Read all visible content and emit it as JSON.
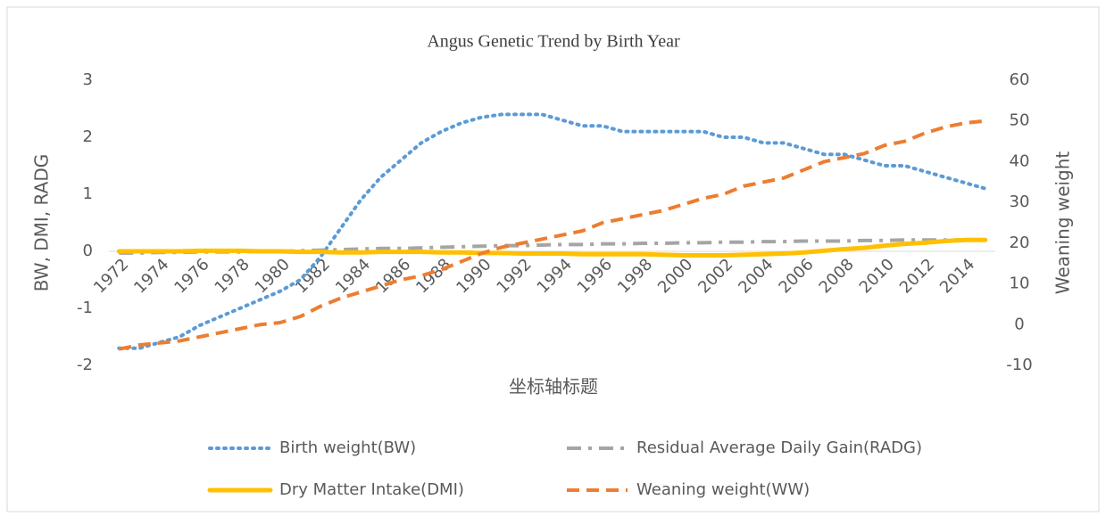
{
  "chart_data": {
    "type": "line",
    "title": "Angus Genetic Trend by Birth Year",
    "x_label": "坐标轴标题",
    "y_label": "BW, DMI, RADG",
    "y2_label": "Weaning weight",
    "categories": [
      "1972",
      null,
      "1974",
      null,
      "1976",
      null,
      "1978",
      null,
      "1980",
      null,
      "1982",
      null,
      "1984",
      null,
      "1986",
      null,
      "1988",
      null,
      "1990",
      null,
      "1992",
      null,
      "1994",
      null,
      "1996",
      null,
      "1998",
      null,
      "2000",
      null,
      "2002",
      null,
      "2004",
      null,
      "2006",
      null,
      "2008",
      null,
      "2010",
      null,
      "2012",
      null,
      "2014",
      null
    ],
    "ylim": [
      -2,
      3
    ],
    "yticks": [
      -2,
      -1,
      0,
      1,
      2,
      3
    ],
    "y2lim": [
      -10,
      60
    ],
    "y2ticks": [
      -10,
      0,
      10,
      20,
      30,
      40,
      50,
      60
    ],
    "legend": "bottom",
    "series": [
      {
        "name": "Birth weight(BW)",
        "color": "#5b9bd5",
        "dash": "dot",
        "values": [
          -1.7,
          -1.7,
          -1.6,
          -1.5,
          -1.3,
          -1.15,
          -1.0,
          -0.85,
          -0.7,
          -0.5,
          -0.1,
          0.4,
          0.9,
          1.3,
          1.6,
          1.9,
          2.1,
          2.25,
          2.35,
          2.4,
          2.4,
          2.4,
          2.3,
          2.2,
          2.2,
          2.1,
          2.1,
          2.1,
          2.1,
          2.1,
          2.0,
          2.0,
          1.9,
          1.9,
          1.8,
          1.7,
          1.7,
          1.6,
          1.5,
          1.5,
          1.4,
          1.3,
          1.2,
          1.1
        ]
      },
      {
        "name": "Residual Average Daily Gain(RADG)",
        "color": "#a5a5a5",
        "dash": "dashdot",
        "values": [
          -0.03,
          -0.03,
          -0.02,
          -0.02,
          -0.01,
          -0.01,
          -0.01,
          0,
          0,
          0.01,
          0.02,
          0.03,
          0.04,
          0.05,
          0.05,
          0.06,
          0.07,
          0.08,
          0.09,
          0.1,
          0.1,
          0.11,
          0.12,
          0.12,
          0.13,
          0.13,
          0.14,
          0.14,
          0.15,
          0.15,
          0.16,
          0.16,
          0.17,
          0.17,
          0.18,
          0.18,
          0.18,
          0.19,
          0.19,
          0.2,
          0.2,
          0.2,
          0.2,
          0.2
        ]
      },
      {
        "name": "Dry Matter Intake(DMI)",
        "color": "#ffc000",
        "dash": "solid",
        "values": [
          0,
          0,
          0,
          0,
          0.01,
          0.01,
          0.01,
          0,
          0,
          -0.01,
          -0.01,
          -0.02,
          -0.02,
          -0.01,
          -0.01,
          -0.01,
          -0.02,
          -0.02,
          -0.03,
          -0.03,
          -0.04,
          -0.04,
          -0.04,
          -0.05,
          -0.05,
          -0.05,
          -0.05,
          -0.06,
          -0.07,
          -0.07,
          -0.07,
          -0.06,
          -0.05,
          -0.04,
          -0.02,
          0.01,
          0.04,
          0.06,
          0.1,
          0.13,
          0.15,
          0.18,
          0.2,
          0.2
        ]
      },
      {
        "name": "Weaning weight(WW)",
        "color": "#ed7d31",
        "dash": "dash",
        "axis": "y2",
        "values": [
          -6,
          -5,
          -4.5,
          -4,
          -3,
          -2,
          -1,
          0,
          0.5,
          2,
          4.5,
          6.5,
          8,
          9.5,
          11,
          12,
          13.5,
          15.5,
          17.5,
          19,
          20,
          21,
          22,
          23,
          25,
          26,
          27,
          28,
          29.5,
          31,
          32,
          34,
          35,
          36,
          38,
          40,
          41,
          42,
          44,
          45,
          47,
          48.5,
          49.5,
          50
        ]
      }
    ]
  }
}
